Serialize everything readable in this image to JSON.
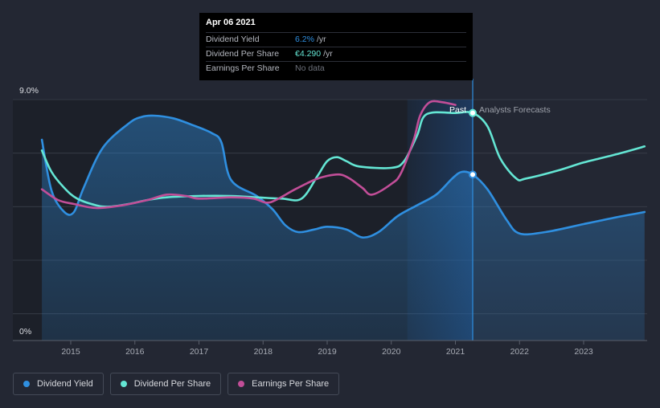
{
  "chart_data": {
    "type": "line",
    "title": "",
    "xlabel": "",
    "ylabel": "",
    "ylim": [
      0,
      9.0
    ],
    "xlim": [
      2014.45,
      2023.95
    ],
    "y_tick_labels": [
      "9.0%",
      "0%"
    ],
    "x_ticks": [
      2015,
      2016,
      2017,
      2018,
      2019,
      2020,
      2021,
      2022,
      2023
    ],
    "x_tick_labels": [
      "2015",
      "2016",
      "2017",
      "2018",
      "2019",
      "2020",
      "2021",
      "2022",
      "2023"
    ],
    "past_divider_x": 2021.27,
    "forecast_annotation": {
      "past_label": "Past",
      "forecast_label": "Analysts Forecasts"
    },
    "series": [
      {
        "name": "Dividend Yield",
        "color": "#2f8fe0",
        "x": [
          2014.55,
          2014.7,
          2014.9,
          2015.05,
          2015.2,
          2015.5,
          2015.9,
          2016.1,
          2016.3,
          2016.6,
          2016.9,
          2017.2,
          2017.35,
          2017.5,
          2017.9,
          2018.15,
          2018.35,
          2018.55,
          2018.8,
          2019.0,
          2019.3,
          2019.55,
          2019.8,
          2020.1,
          2020.4,
          2020.7,
          2020.95,
          2021.1,
          2021.27,
          2021.5,
          2021.8,
          2022.0,
          2022.4,
          2023.0,
          2023.5,
          2023.95
        ],
        "y": [
          7.5,
          5.6,
          4.8,
          4.8,
          5.7,
          7.2,
          8.1,
          8.35,
          8.4,
          8.3,
          8.05,
          7.75,
          7.4,
          6.0,
          5.4,
          4.9,
          4.3,
          4.05,
          4.15,
          4.25,
          4.15,
          3.85,
          4.05,
          4.65,
          5.05,
          5.45,
          6.05,
          6.3,
          6.2,
          5.65,
          4.5,
          4.0,
          4.05,
          4.35,
          4.6,
          4.8
        ],
        "fill": true
      },
      {
        "name": "Dividend Per Share",
        "color": "#64e6d4",
        "x": [
          2014.55,
          2014.7,
          2014.9,
          2015.1,
          2015.4,
          2015.6,
          2015.9,
          2016.2,
          2016.5,
          2017.0,
          2017.5,
          2017.9,
          2018.3,
          2018.6,
          2018.85,
          2019.0,
          2019.15,
          2019.3,
          2019.5,
          2020.0,
          2020.2,
          2020.4,
          2020.55,
          2021.0,
          2021.27,
          2021.5,
          2021.7,
          2021.95,
          2022.1,
          2022.6,
          2023.0,
          2023.5,
          2023.95
        ],
        "y": [
          7.1,
          6.3,
          5.7,
          5.3,
          5.05,
          5.0,
          5.1,
          5.25,
          5.35,
          5.4,
          5.4,
          5.35,
          5.3,
          5.3,
          6.15,
          6.7,
          6.85,
          6.7,
          6.5,
          6.45,
          6.7,
          7.65,
          8.45,
          8.5,
          8.5,
          8.0,
          6.8,
          6.05,
          6.05,
          6.35,
          6.65,
          6.95,
          7.25
        ],
        "fill": false
      },
      {
        "name": "Earnings Per Share",
        "color": "#c24e98",
        "x": [
          2014.55,
          2014.8,
          2015.05,
          2015.4,
          2015.8,
          2016.2,
          2016.5,
          2016.8,
          2017.0,
          2017.5,
          2017.85,
          2018.05,
          2018.2,
          2018.5,
          2018.8,
          2019.0,
          2019.2,
          2019.35,
          2019.55,
          2019.7,
          2020.0,
          2020.15,
          2020.35,
          2020.45,
          2020.6,
          2020.8,
          2021.0
        ],
        "y": [
          5.65,
          5.25,
          5.1,
          4.95,
          5.05,
          5.25,
          5.45,
          5.4,
          5.3,
          5.35,
          5.3,
          5.15,
          5.25,
          5.65,
          6.0,
          6.15,
          6.2,
          6.05,
          5.7,
          5.45,
          5.85,
          6.25,
          7.5,
          8.4,
          8.9,
          8.9,
          8.8
        ],
        "fill": false
      }
    ],
    "markers": [
      {
        "series": "Dividend Yield",
        "x": 2021.27,
        "y": 6.2
      },
      {
        "series": "Dividend Per Share",
        "x": 2021.27,
        "y": 8.5
      }
    ]
  },
  "tooltip": {
    "date": "Apr 06 2021",
    "rows": [
      {
        "label": "Dividend Yield",
        "value": "6.2%",
        "unit": "/yr"
      },
      {
        "label": "Dividend Per Share",
        "value": "€4.290",
        "unit": "/yr"
      },
      {
        "label": "Earnings Per Share",
        "value": "No data",
        "unit": ""
      }
    ]
  },
  "legend": [
    {
      "label": "Dividend Yield",
      "color": "#2f8fe0"
    },
    {
      "label": "Dividend Per Share",
      "color": "#64e6d4"
    },
    {
      "label": "Earnings Per Share",
      "color": "#c24e98"
    }
  ]
}
